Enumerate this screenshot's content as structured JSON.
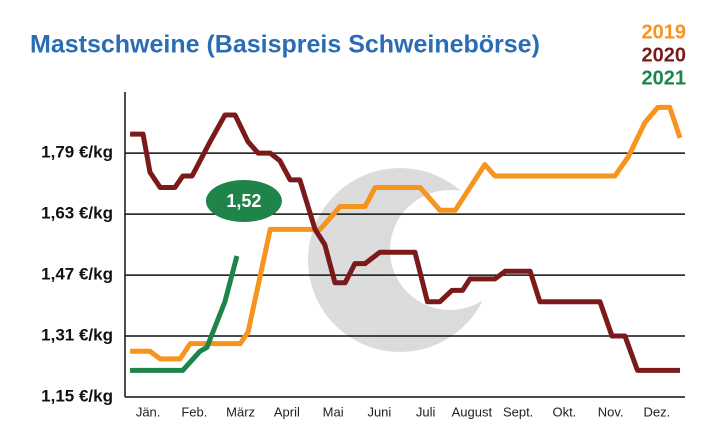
{
  "chart_data": {
    "type": "line",
    "title": "Mastschweine (Basispreis Schweinebörse)",
    "xlim": [
      0,
      12
    ],
    "xticks": [
      {
        "value": 0.5,
        "label": "Jän."
      },
      {
        "value": 1.5,
        "label": "Feb."
      },
      {
        "value": 2.5,
        "label": "März"
      },
      {
        "value": 3.5,
        "label": "April"
      },
      {
        "value": 4.5,
        "label": "Mai"
      },
      {
        "value": 5.5,
        "label": "Juni"
      },
      {
        "value": 6.5,
        "label": "Juli"
      },
      {
        "value": 7.5,
        "label": "August"
      },
      {
        "value": 8.5,
        "label": "Sept."
      },
      {
        "value": 9.5,
        "label": "Okt."
      },
      {
        "value": 10.5,
        "label": "Nov."
      },
      {
        "value": 11.5,
        "label": "Dez."
      }
    ],
    "ylim": [
      1.15,
      1.94
    ],
    "yticks": [
      {
        "value": 1.15,
        "label": "1,15 €/kg"
      },
      {
        "value": 1.31,
        "label": "1,31 €/kg"
      },
      {
        "value": 1.47,
        "label": "1,47 €/kg"
      },
      {
        "value": 1.63,
        "label": "1,63 €/kg"
      },
      {
        "value": 1.79,
        "label": "1,79 €/kg"
      }
    ],
    "grid": true,
    "series": [
      {
        "name": "2019",
        "color": "#f7941d",
        "x": [
          0.11,
          0.54,
          0.76,
          1.19,
          1.41,
          2.49,
          2.66,
          3.14,
          4.22,
          4.65,
          5.19,
          5.41,
          6.38,
          6.81,
          7.14,
          7.46,
          7.78,
          8.0,
          10.59,
          10.88,
          11.24,
          11.52,
          11.78,
          12.0
        ],
        "values": [
          1.27,
          1.27,
          1.25,
          1.25,
          1.29,
          1.29,
          1.32,
          1.59,
          1.59,
          1.65,
          1.65,
          1.7,
          1.7,
          1.64,
          1.64,
          1.7,
          1.76,
          1.73,
          1.73,
          1.78,
          1.87,
          1.91,
          1.91,
          1.83
        ]
      },
      {
        "name": "2020",
        "color": "#7b1a1a",
        "x": [
          0.11,
          0.39,
          0.54,
          0.76,
          1.08,
          1.25,
          1.45,
          1.84,
          2.16,
          2.38,
          2.66,
          2.88,
          3.14,
          3.35,
          3.57,
          3.78,
          4.11,
          4.32,
          4.54,
          4.76,
          4.97,
          5.19,
          5.51,
          6.27,
          6.54,
          6.81,
          7.07,
          7.3,
          7.46,
          8.0,
          8.22,
          8.76,
          8.97,
          10.27,
          10.53,
          10.81,
          11.08,
          12.0
        ],
        "values": [
          1.84,
          1.84,
          1.74,
          1.7,
          1.7,
          1.73,
          1.73,
          1.82,
          1.89,
          1.89,
          1.82,
          1.79,
          1.79,
          1.77,
          1.72,
          1.72,
          1.59,
          1.55,
          1.45,
          1.45,
          1.5,
          1.5,
          1.53,
          1.53,
          1.4,
          1.4,
          1.43,
          1.43,
          1.46,
          1.46,
          1.48,
          1.48,
          1.4,
          1.4,
          1.31,
          1.31,
          1.22,
          1.22
        ]
      },
      {
        "name": "2021",
        "color": "#1e8449",
        "x": [
          0.11,
          1.25,
          1.62,
          1.77,
          2.16,
          2.42
        ],
        "values": [
          1.22,
          1.22,
          1.27,
          1.28,
          1.4,
          1.52
        ]
      }
    ],
    "annotation": {
      "value": 1.52,
      "label": "1,52"
    }
  }
}
